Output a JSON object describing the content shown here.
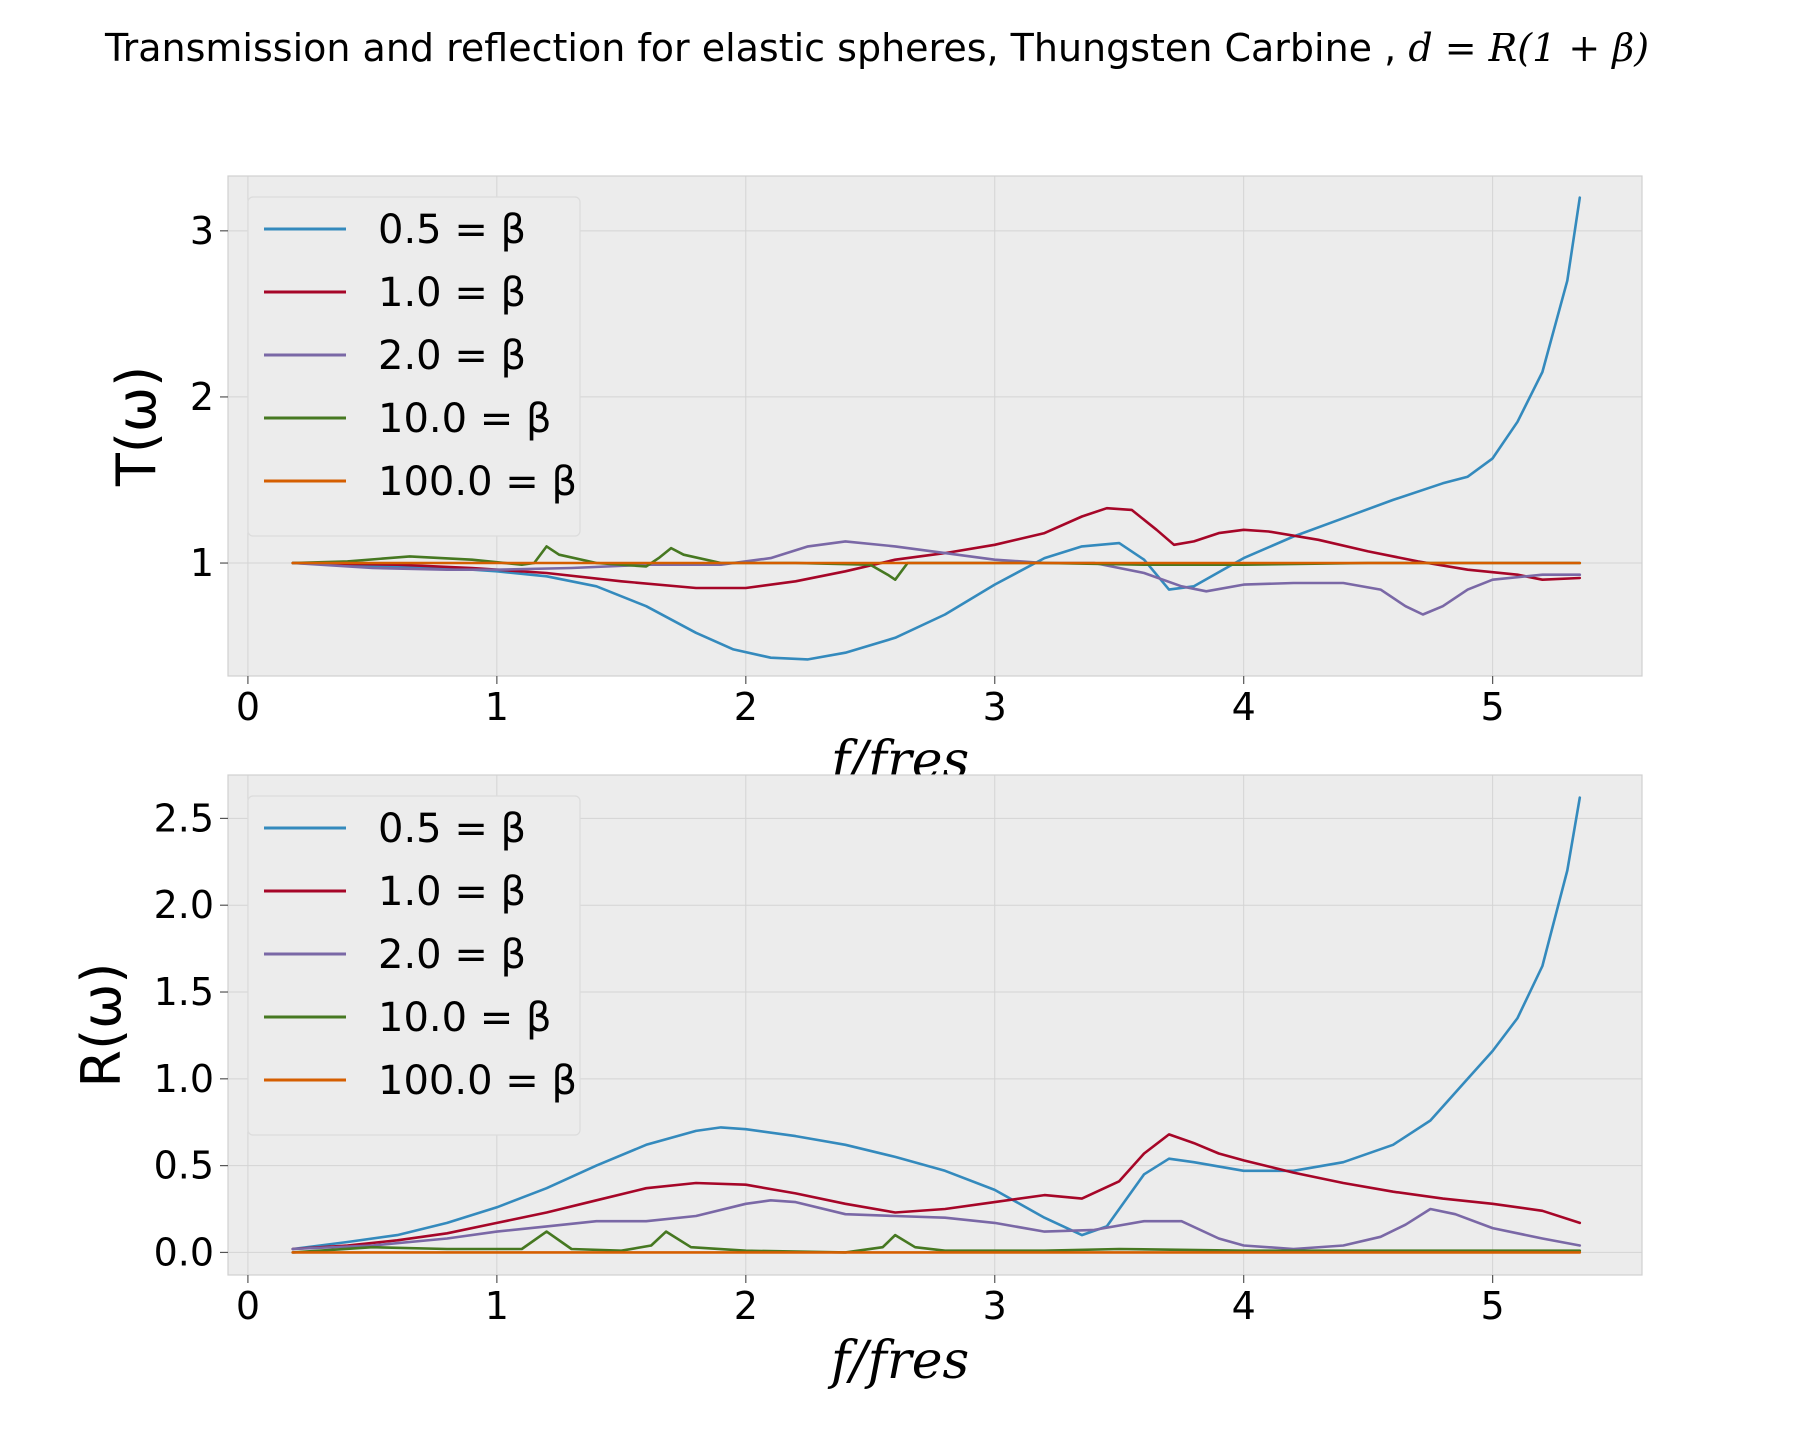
{
  "figure": {
    "suptitle": "Transmission and reflection for elastic spheres, Thungsten Carbine , ",
    "suptitle_math": "d = R(1 + β)"
  },
  "legend_labels": [
    "0.5 = β",
    "1.0 = β",
    "2.0 = β",
    "10.0 = β",
    "100.0 = β"
  ],
  "colors": [
    "#348abd",
    "#a60628",
    "#7a68a6",
    "#467821",
    "#d55e00"
  ],
  "chart_data": [
    {
      "type": "line",
      "xlabel": "f/fres",
      "ylabel": "T(ω)",
      "xlim": [
        -0.08,
        5.6
      ],
      "ylim": [
        0.32,
        3.33
      ],
      "xticks": [
        0,
        1,
        2,
        3,
        4,
        5
      ],
      "yticks": [
        1,
        2,
        3
      ],
      "grid": true,
      "legend": "upper-left",
      "series": [
        {
          "name": "0.5 = β",
          "points": [
            [
              0.18,
              1.0
            ],
            [
              0.5,
              0.98
            ],
            [
              0.8,
              0.97
            ],
            [
              1.0,
              0.95
            ],
            [
              1.2,
              0.92
            ],
            [
              1.4,
              0.86
            ],
            [
              1.6,
              0.74
            ],
            [
              1.8,
              0.58
            ],
            [
              1.95,
              0.48
            ],
            [
              2.1,
              0.43
            ],
            [
              2.25,
              0.42
            ],
            [
              2.4,
              0.46
            ],
            [
              2.6,
              0.55
            ],
            [
              2.8,
              0.69
            ],
            [
              3.0,
              0.87
            ],
            [
              3.2,
              1.03
            ],
            [
              3.35,
              1.1
            ],
            [
              3.5,
              1.12
            ],
            [
              3.6,
              1.02
            ],
            [
              3.7,
              0.84
            ],
            [
              3.8,
              0.86
            ],
            [
              4.0,
              1.03
            ],
            [
              4.2,
              1.16
            ],
            [
              4.4,
              1.27
            ],
            [
              4.6,
              1.38
            ],
            [
              4.8,
              1.48
            ],
            [
              4.9,
              1.52
            ],
            [
              5.0,
              1.63
            ],
            [
              5.1,
              1.85
            ],
            [
              5.2,
              2.15
            ],
            [
              5.3,
              2.7
            ],
            [
              5.35,
              3.2
            ]
          ]
        },
        {
          "name": "1.0 = β",
          "points": [
            [
              0.18,
              1.0
            ],
            [
              0.6,
              0.99
            ],
            [
              0.9,
              0.97
            ],
            [
              1.2,
              0.94
            ],
            [
              1.5,
              0.89
            ],
            [
              1.8,
              0.85
            ],
            [
              2.0,
              0.85
            ],
            [
              2.2,
              0.89
            ],
            [
              2.4,
              0.95
            ],
            [
              2.6,
              1.02
            ],
            [
              2.8,
              1.06
            ],
            [
              3.0,
              1.11
            ],
            [
              3.2,
              1.18
            ],
            [
              3.35,
              1.28
            ],
            [
              3.45,
              1.33
            ],
            [
              3.55,
              1.32
            ],
            [
              3.65,
              1.2
            ],
            [
              3.72,
              1.11
            ],
            [
              3.8,
              1.13
            ],
            [
              3.9,
              1.18
            ],
            [
              4.0,
              1.2
            ],
            [
              4.1,
              1.19
            ],
            [
              4.3,
              1.14
            ],
            [
              4.5,
              1.07
            ],
            [
              4.7,
              1.01
            ],
            [
              4.9,
              0.96
            ],
            [
              5.1,
              0.93
            ],
            [
              5.2,
              0.9
            ],
            [
              5.35,
              0.91
            ]
          ]
        },
        {
          "name": "2.0 = β",
          "points": [
            [
              0.18,
              1.0
            ],
            [
              0.5,
              0.97
            ],
            [
              0.8,
              0.96
            ],
            [
              1.0,
              0.96
            ],
            [
              1.3,
              0.97
            ],
            [
              1.6,
              0.99
            ],
            [
              1.9,
              0.99
            ],
            [
              2.1,
              1.03
            ],
            [
              2.25,
              1.1
            ],
            [
              2.4,
              1.13
            ],
            [
              2.6,
              1.1
            ],
            [
              2.8,
              1.06
            ],
            [
              3.0,
              1.02
            ],
            [
              3.2,
              1.0
            ],
            [
              3.4,
              1.0
            ],
            [
              3.6,
              0.94
            ],
            [
              3.75,
              0.86
            ],
            [
              3.85,
              0.83
            ],
            [
              4.0,
              0.87
            ],
            [
              4.2,
              0.88
            ],
            [
              4.4,
              0.88
            ],
            [
              4.55,
              0.84
            ],
            [
              4.65,
              0.74
            ],
            [
              4.72,
              0.69
            ],
            [
              4.8,
              0.74
            ],
            [
              4.9,
              0.84
            ],
            [
              5.0,
              0.9
            ],
            [
              5.2,
              0.93
            ],
            [
              5.35,
              0.93
            ]
          ]
        },
        {
          "name": "10.0 = β",
          "points": [
            [
              0.18,
              1.0
            ],
            [
              0.4,
              1.01
            ],
            [
              0.65,
              1.04
            ],
            [
              0.9,
              1.02
            ],
            [
              1.1,
              0.99
            ],
            [
              1.15,
              1.0
            ],
            [
              1.2,
              1.1
            ],
            [
              1.25,
              1.05
            ],
            [
              1.4,
              1.0
            ],
            [
              1.6,
              0.98
            ],
            [
              1.65,
              1.03
            ],
            [
              1.7,
              1.09
            ],
            [
              1.75,
              1.05
            ],
            [
              1.9,
              1.0
            ],
            [
              2.2,
              1.0
            ],
            [
              2.5,
              0.99
            ],
            [
              2.57,
              0.93
            ],
            [
              2.6,
              0.9
            ],
            [
              2.65,
              1.0
            ],
            [
              2.8,
              1.0
            ],
            [
              3.2,
              1.0
            ],
            [
              3.6,
              0.99
            ],
            [
              4.0,
              0.99
            ],
            [
              4.5,
              1.0
            ],
            [
              5.0,
              1.0
            ],
            [
              5.35,
              1.0
            ]
          ]
        },
        {
          "name": "100.0 = β",
          "points": [
            [
              0.18,
              1.0
            ],
            [
              1.0,
              1.0
            ],
            [
              2.0,
              1.0
            ],
            [
              3.0,
              1.0
            ],
            [
              4.0,
              1.0
            ],
            [
              5.0,
              1.0
            ],
            [
              5.35,
              1.0
            ]
          ]
        }
      ]
    },
    {
      "type": "line",
      "xlabel": "f/fres",
      "ylabel": "R(ω)",
      "xlim": [
        -0.08,
        5.6
      ],
      "ylim": [
        -0.13,
        2.75
      ],
      "xticks": [
        0,
        1,
        2,
        3,
        4,
        5
      ],
      "yticks": [
        0.0,
        0.5,
        1.0,
        1.5,
        2.0,
        2.5
      ],
      "grid": true,
      "legend": "upper-left",
      "series": [
        {
          "name": "0.5 = β",
          "points": [
            [
              0.18,
              0.02
            ],
            [
              0.4,
              0.06
            ],
            [
              0.6,
              0.1
            ],
            [
              0.8,
              0.17
            ],
            [
              1.0,
              0.26
            ],
            [
              1.2,
              0.37
            ],
            [
              1.4,
              0.5
            ],
            [
              1.6,
              0.62
            ],
            [
              1.8,
              0.7
            ],
            [
              1.9,
              0.72
            ],
            [
              2.0,
              0.71
            ],
            [
              2.2,
              0.67
            ],
            [
              2.4,
              0.62
            ],
            [
              2.6,
              0.55
            ],
            [
              2.8,
              0.47
            ],
            [
              3.0,
              0.36
            ],
            [
              3.2,
              0.2
            ],
            [
              3.35,
              0.1
            ],
            [
              3.45,
              0.15
            ],
            [
              3.6,
              0.45
            ],
            [
              3.7,
              0.54
            ],
            [
              3.8,
              0.52
            ],
            [
              4.0,
              0.47
            ],
            [
              4.2,
              0.47
            ],
            [
              4.4,
              0.52
            ],
            [
              4.6,
              0.62
            ],
            [
              4.75,
              0.76
            ],
            [
              4.9,
              1.0
            ],
            [
              5.0,
              1.16
            ],
            [
              5.1,
              1.35
            ],
            [
              5.2,
              1.65
            ],
            [
              5.3,
              2.2
            ],
            [
              5.35,
              2.62
            ]
          ]
        },
        {
          "name": "1.0 = β",
          "points": [
            [
              0.18,
              0.02
            ],
            [
              0.4,
              0.04
            ],
            [
              0.6,
              0.07
            ],
            [
              0.8,
              0.11
            ],
            [
              1.0,
              0.17
            ],
            [
              1.2,
              0.23
            ],
            [
              1.4,
              0.3
            ],
            [
              1.6,
              0.37
            ],
            [
              1.8,
              0.4
            ],
            [
              2.0,
              0.39
            ],
            [
              2.2,
              0.34
            ],
            [
              2.4,
              0.28
            ],
            [
              2.6,
              0.23
            ],
            [
              2.8,
              0.25
            ],
            [
              3.0,
              0.29
            ],
            [
              3.2,
              0.33
            ],
            [
              3.35,
              0.31
            ],
            [
              3.5,
              0.41
            ],
            [
              3.6,
              0.57
            ],
            [
              3.7,
              0.68
            ],
            [
              3.8,
              0.63
            ],
            [
              3.9,
              0.57
            ],
            [
              4.0,
              0.53
            ],
            [
              4.2,
              0.46
            ],
            [
              4.4,
              0.4
            ],
            [
              4.6,
              0.35
            ],
            [
              4.8,
              0.31
            ],
            [
              5.0,
              0.28
            ],
            [
              5.2,
              0.24
            ],
            [
              5.35,
              0.17
            ]
          ]
        },
        {
          "name": "2.0 = β",
          "points": [
            [
              0.18,
              0.02
            ],
            [
              0.5,
              0.04
            ],
            [
              0.8,
              0.08
            ],
            [
              1.0,
              0.12
            ],
            [
              1.2,
              0.15
            ],
            [
              1.4,
              0.18
            ],
            [
              1.6,
              0.18
            ],
            [
              1.8,
              0.21
            ],
            [
              2.0,
              0.28
            ],
            [
              2.1,
              0.3
            ],
            [
              2.2,
              0.29
            ],
            [
              2.4,
              0.22
            ],
            [
              2.6,
              0.21
            ],
            [
              2.8,
              0.2
            ],
            [
              3.0,
              0.17
            ],
            [
              3.2,
              0.12
            ],
            [
              3.4,
              0.13
            ],
            [
              3.6,
              0.18
            ],
            [
              3.75,
              0.18
            ],
            [
              3.9,
              0.08
            ],
            [
              4.0,
              0.04
            ],
            [
              4.2,
              0.02
            ],
            [
              4.4,
              0.04
            ],
            [
              4.55,
              0.09
            ],
            [
              4.65,
              0.16
            ],
            [
              4.75,
              0.25
            ],
            [
              4.85,
              0.22
            ],
            [
              5.0,
              0.14
            ],
            [
              5.2,
              0.08
            ],
            [
              5.35,
              0.04
            ]
          ]
        },
        {
          "name": "10.0 = β",
          "points": [
            [
              0.18,
              0.0
            ],
            [
              0.5,
              0.03
            ],
            [
              0.8,
              0.02
            ],
            [
              1.1,
              0.02
            ],
            [
              1.2,
              0.12
            ],
            [
              1.3,
              0.02
            ],
            [
              1.5,
              0.01
            ],
            [
              1.62,
              0.04
            ],
            [
              1.68,
              0.12
            ],
            [
              1.78,
              0.03
            ],
            [
              2.0,
              0.01
            ],
            [
              2.4,
              0.0
            ],
            [
              2.55,
              0.03
            ],
            [
              2.6,
              0.1
            ],
            [
              2.68,
              0.03
            ],
            [
              2.8,
              0.01
            ],
            [
              3.2,
              0.01
            ],
            [
              3.5,
              0.02
            ],
            [
              4.0,
              0.01
            ],
            [
              4.5,
              0.01
            ],
            [
              5.0,
              0.01
            ],
            [
              5.35,
              0.01
            ]
          ]
        },
        {
          "name": "100.0 = β",
          "points": [
            [
              0.18,
              0.0
            ],
            [
              1.0,
              0.0
            ],
            [
              2.0,
              0.0
            ],
            [
              3.0,
              0.0
            ],
            [
              4.0,
              0.0
            ],
            [
              5.0,
              0.0
            ],
            [
              5.35,
              0.0
            ]
          ]
        }
      ]
    }
  ]
}
